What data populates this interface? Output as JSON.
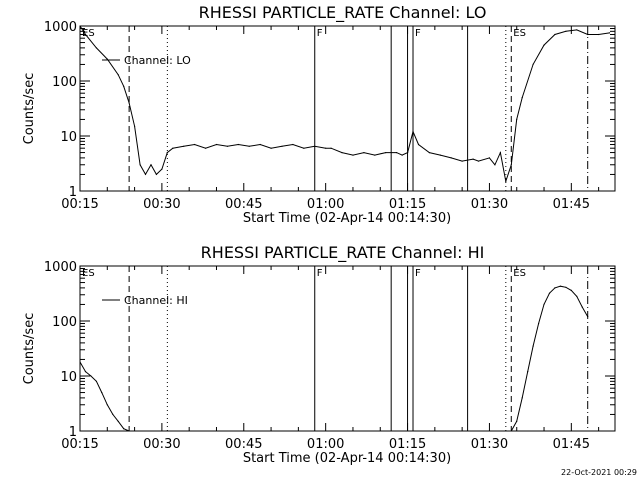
{
  "footer": {
    "timestamp": "22-Oct-2021 00:29"
  },
  "chart_data": [
    {
      "type": "line",
      "title": "RHESSI PARTICLE_RATE Channel: LO",
      "xlabel": "Start Time (02-Apr-14 00:14:30)",
      "ylabel": "Counts/sec",
      "yscale": "log",
      "ylim": [
        1,
        1000
      ],
      "xlim": [
        "00:15",
        "01:53"
      ],
      "xticks": [
        "00:15",
        "00:30",
        "00:45",
        "01:00",
        "01:15",
        "01:30",
        "01:45"
      ],
      "yticks": [
        "1",
        "10",
        "100",
        "1000"
      ],
      "legend": {
        "placement": "top-left",
        "label": "Channel: LO"
      },
      "series": [
        {
          "name": "Channel: LO",
          "x": [
            "00:15",
            "00:16",
            "00:18",
            "00:20",
            "00:22",
            "00:23",
            "00:24",
            "00:25",
            "00:26",
            "00:27",
            "00:28",
            "00:29",
            "00:30",
            "00:31",
            "00:32",
            "00:34",
            "00:36",
            "00:38",
            "00:40",
            "00:42",
            "00:44",
            "00:46",
            "00:48",
            "00:50",
            "00:52",
            "00:54",
            "00:56",
            "00:58",
            "01:00",
            "01:01",
            "01:03",
            "01:05",
            "01:07",
            "01:09",
            "01:11",
            "01:13",
            "01:14",
            "01:15",
            "01:16",
            "01:17",
            "01:19",
            "01:21",
            "01:23",
            "01:25",
            "01:27",
            "01:28",
            "01:30",
            "01:31",
            "01:32",
            "01:33",
            "01:34",
            "01:35",
            "01:36",
            "01:38",
            "01:40",
            "01:42",
            "01:44",
            "01:46",
            "01:48",
            "01:50",
            "01:52"
          ],
          "values": [
            1000,
            700,
            400,
            250,
            130,
            80,
            40,
            15,
            3,
            2,
            3,
            2,
            2.5,
            5,
            6,
            6.5,
            7,
            6,
            7,
            6.5,
            7,
            6.5,
            7,
            6,
            6.5,
            7,
            6,
            6.5,
            6,
            6,
            5,
            4.5,
            5,
            4.5,
            5,
            5,
            4.5,
            5,
            12,
            7,
            5,
            4.5,
            4,
            3.5,
            3.8,
            3.5,
            4,
            3,
            5,
            1.5,
            3,
            20,
            50,
            200,
            450,
            700,
            800,
            850,
            700,
            700,
            750
          ]
        }
      ],
      "markers": [
        {
          "time": "00:15",
          "style": "solid",
          "label": "ES"
        },
        {
          "time": "00:24",
          "style": "dashed",
          "label": ""
        },
        {
          "time": "00:31",
          "style": "dotted",
          "label": ""
        },
        {
          "time": "00:58",
          "style": "solid",
          "label": "F"
        },
        {
          "time": "01:12",
          "style": "solid",
          "label": ""
        },
        {
          "time": "01:15",
          "style": "solid",
          "label": ""
        },
        {
          "time": "01:16",
          "style": "solid",
          "label": "F"
        },
        {
          "time": "01:26",
          "style": "solid",
          "label": ""
        },
        {
          "time": "01:33",
          "style": "dotted",
          "label": ""
        },
        {
          "time": "01:34",
          "style": "dashed",
          "label": "ES"
        },
        {
          "time": "01:48",
          "style": "dashdot",
          "label": ""
        }
      ]
    },
    {
      "type": "line",
      "title": "RHESSI PARTICLE_RATE Channel: HI",
      "xlabel": "Start Time (02-Apr-14 00:14:30)",
      "ylabel": "Counts/sec",
      "yscale": "log",
      "ylim": [
        1,
        1000
      ],
      "xlim": [
        "00:15",
        "01:53"
      ],
      "xticks": [
        "00:15",
        "00:30",
        "00:45",
        "01:00",
        "01:15",
        "01:30",
        "01:45"
      ],
      "yticks": [
        "1",
        "10",
        "100",
        "1000"
      ],
      "legend": {
        "placement": "top-left",
        "label": "Channel: HI"
      },
      "series": [
        {
          "name": "Channel: HI",
          "x": [
            "00:15",
            "00:16",
            "00:17",
            "00:18",
            "00:19",
            "00:20",
            "00:21",
            "00:22",
            "00:23",
            "00:24"
          ],
          "values": [
            18,
            12,
            10,
            8,
            5,
            3,
            2,
            1.5,
            1.1,
            1
          ],
          "x2": [
            "01:34",
            "01:35",
            "01:36",
            "01:37",
            "01:38",
            "01:39",
            "01:40",
            "01:41",
            "01:42",
            "01:43",
            "01:44",
            "01:45",
            "01:46",
            "01:47",
            "01:48"
          ],
          "values2": [
            1,
            1.5,
            4,
            12,
            35,
            90,
            200,
            320,
            400,
            430,
            410,
            360,
            280,
            180,
            120
          ]
        }
      ],
      "markers": [
        {
          "time": "00:15",
          "style": "solid",
          "label": "ES"
        },
        {
          "time": "00:24",
          "style": "dashed",
          "label": ""
        },
        {
          "time": "00:31",
          "style": "dotted",
          "label": ""
        },
        {
          "time": "00:58",
          "style": "solid",
          "label": "F"
        },
        {
          "time": "01:12",
          "style": "solid",
          "label": ""
        },
        {
          "time": "01:15",
          "style": "solid",
          "label": ""
        },
        {
          "time": "01:16",
          "style": "solid",
          "label": "F"
        },
        {
          "time": "01:26",
          "style": "solid",
          "label": ""
        },
        {
          "time": "01:33",
          "style": "dotted",
          "label": ""
        },
        {
          "time": "01:34",
          "style": "dashed",
          "label": "ES"
        },
        {
          "time": "01:48",
          "style": "dashdot",
          "label": ""
        }
      ]
    }
  ]
}
